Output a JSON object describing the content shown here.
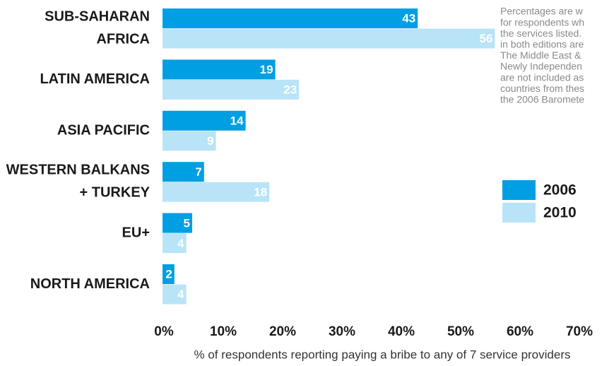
{
  "chart_data": {
    "type": "bar",
    "orientation": "horizontal",
    "categories": [
      "SUB-SAHARAN\nAFRICA",
      "LATIN AMERICA",
      "ASIA PACIFIC",
      "WESTERN BALKANS\n+ TURKEY",
      "EU+",
      "NORTH AMERICA"
    ],
    "series": [
      {
        "name": "2006",
        "color": "#009fe3",
        "values": [
          43,
          19,
          14,
          7,
          5,
          2
        ]
      },
      {
        "name": "2010",
        "color": "#b9e4f8",
        "values": [
          56,
          23,
          9,
          18,
          4,
          4
        ]
      }
    ],
    "xlim": [
      0,
      70
    ],
    "xticks": [
      {
        "value": 0,
        "label": "0%"
      },
      {
        "value": 10,
        "label": "10%"
      },
      {
        "value": 20,
        "label": "20%"
      },
      {
        "value": 30,
        "label": "30%"
      },
      {
        "value": 40,
        "label": "40%"
      },
      {
        "value": 50,
        "label": "50%"
      },
      {
        "value": 60,
        "label": "60%"
      },
      {
        "value": 70,
        "label": "70%"
      }
    ],
    "xlabel": "% of respondents reporting paying a bribe to any of 7 service providers",
    "annotation": [
      "Percentages are w",
      "for respondents wh",
      "the services listed.",
      "in both editions are",
      "The Middle East &",
      "Newly Independen",
      "are not included as",
      "countries from thes",
      "the 2006 Baromete"
    ],
    "legend": "right"
  }
}
